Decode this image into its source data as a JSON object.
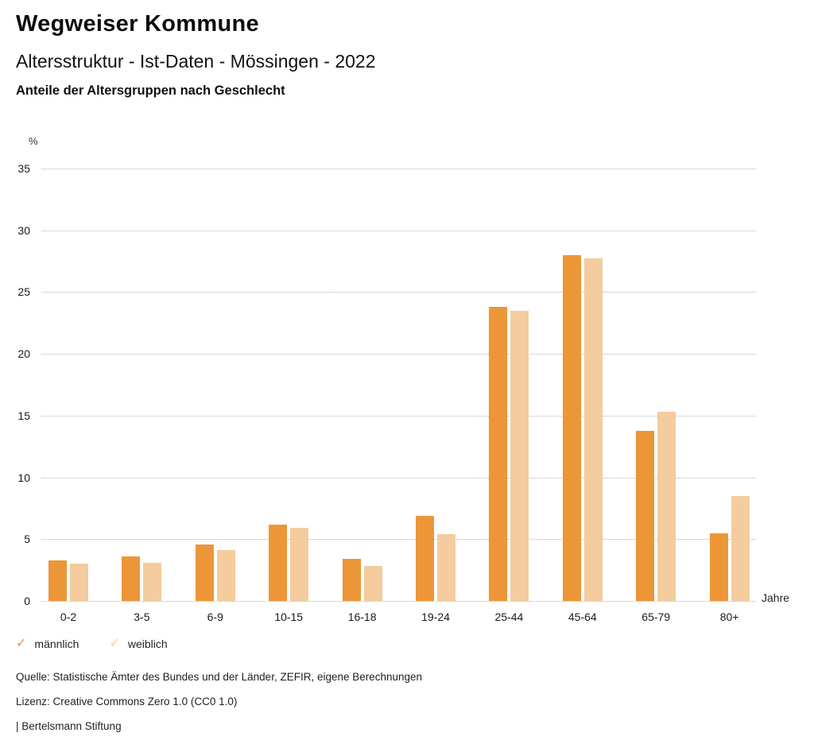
{
  "header": {
    "title": "Wegweiser Kommune",
    "subtitle": "Altersstruktur - Ist-Daten - Mössingen - 2022",
    "caption": "Anteile der Altersgruppen nach Geschlecht"
  },
  "chart_data": {
    "type": "bar",
    "title": "Anteile der Altersgruppen nach Geschlecht",
    "categories": [
      "0-2",
      "3-5",
      "6-9",
      "10-15",
      "16-18",
      "19-24",
      "25-44",
      "45-64",
      "65-79",
      "80+"
    ],
    "series": [
      {
        "name": "männlich",
        "color": "#EC9637",
        "values": [
          3.3,
          3.6,
          4.6,
          6.2,
          3.4,
          6.9,
          23.8,
          28.0,
          13.8,
          5.5
        ]
      },
      {
        "name": "weiblich",
        "color": "#F4CC9D",
        "values": [
          3.0,
          3.1,
          4.1,
          5.9,
          2.8,
          5.4,
          23.5,
          27.7,
          15.3,
          8.5
        ]
      }
    ],
    "ylabel": "%",
    "xlabel": "Jahre",
    "ylim": [
      0,
      35
    ],
    "ytick_step": 5,
    "grid": "horizontal-dotted",
    "legend_position": "bottom-left"
  },
  "legend": {
    "check_glyph": "✓"
  },
  "footer": {
    "source": "Quelle: Statistische Ämter des Bundes und der Länder, ZEFIR, eigene Berechnungen",
    "license": "Lizenz: Creative Commons Zero 1.0 (CC0 1.0)",
    "publisher": "| Bertelsmann Stiftung"
  }
}
